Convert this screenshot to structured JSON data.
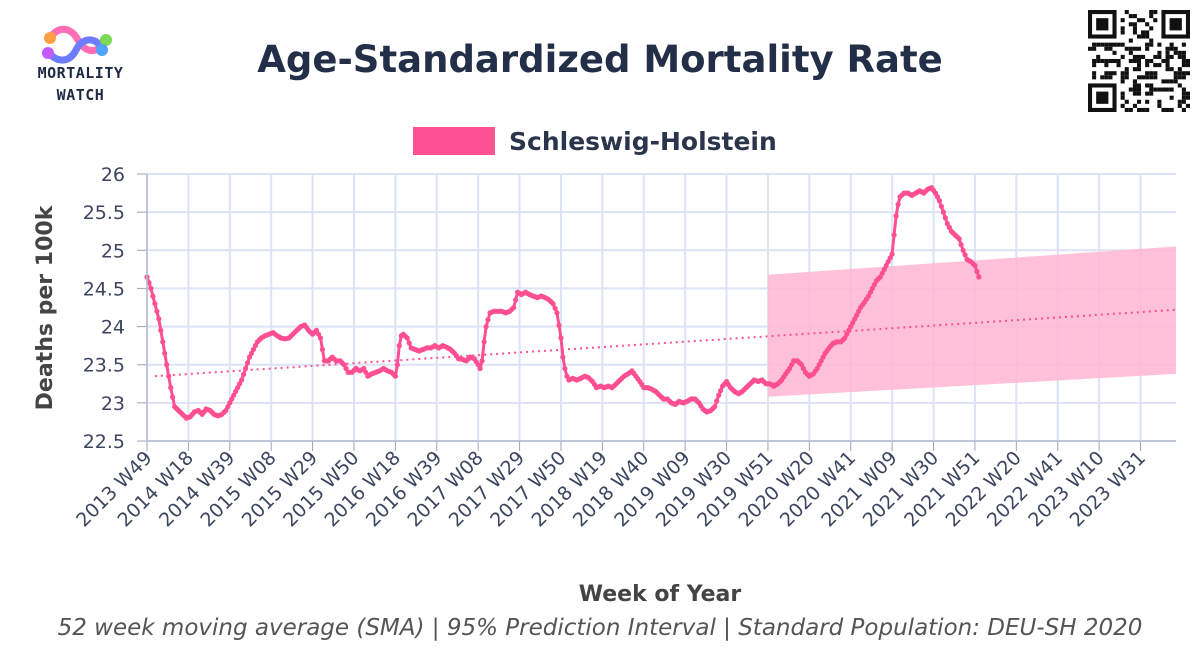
{
  "logo": {
    "line1": "MORTALITY",
    "line2": "WATCH"
  },
  "colors": {
    "series": "#ff4f93",
    "pi_fill": "#ffb6d2",
    "grid": "#dde3f5",
    "title": "#232f48"
  },
  "chart_data": {
    "type": "line",
    "title": "Age-Standardized Mortality Rate",
    "xlabel": "Week of Year",
    "ylabel": "Deaths per 100k",
    "ylim": [
      22.5,
      26
    ],
    "yticks": [
      22.5,
      23,
      23.5,
      24,
      24.5,
      25,
      25.5,
      26
    ],
    "ytick_labels": [
      "22.5",
      "23",
      "23.5",
      "24",
      "24.5",
      "25",
      "25.5",
      "26"
    ],
    "x_range_weeks": [
      0,
      522
    ],
    "xticks": [
      {
        "label": "2013 W49",
        "week": 0
      },
      {
        "label": "2014 W18",
        "week": 21
      },
      {
        "label": "2014 W39",
        "week": 42
      },
      {
        "label": "2015 W08",
        "week": 63
      },
      {
        "label": "2015 W29",
        "week": 84
      },
      {
        "label": "2015 W50",
        "week": 105
      },
      {
        "label": "2016 W18",
        "week": 126
      },
      {
        "label": "2016 W39",
        "week": 147
      },
      {
        "label": "2017 W08",
        "week": 168
      },
      {
        "label": "2017 W29",
        "week": 189
      },
      {
        "label": "2017 W50",
        "week": 210
      },
      {
        "label": "2018 W19",
        "week": 231
      },
      {
        "label": "2018 W40",
        "week": 252
      },
      {
        "label": "2019 W09",
        "week": 273
      },
      {
        "label": "2019 W30",
        "week": 294
      },
      {
        "label": "2019 W51",
        "week": 315
      },
      {
        "label": "2020 W20",
        "week": 336
      },
      {
        "label": "2020 W41",
        "week": 357
      },
      {
        "label": "2021 W09",
        "week": 378
      },
      {
        "label": "2021 W30",
        "week": 399
      },
      {
        "label": "2021 W51",
        "week": 420
      },
      {
        "label": "2022 W20",
        "week": 441
      },
      {
        "label": "2022 W41",
        "week": 462
      },
      {
        "label": "2023 W10",
        "week": 483
      },
      {
        "label": "2023 W31",
        "week": 504
      }
    ],
    "series": [
      {
        "name": "Schleswig-Holstein",
        "points": [
          [
            0,
            24.65
          ],
          [
            2,
            24.5
          ],
          [
            4,
            24.3
          ],
          [
            6,
            24.1
          ],
          [
            8,
            23.8
          ],
          [
            10,
            23.5
          ],
          [
            12,
            23.2
          ],
          [
            14,
            22.95
          ],
          [
            16,
            22.9
          ],
          [
            18,
            22.85
          ],
          [
            20,
            22.8
          ],
          [
            22,
            22.82
          ],
          [
            24,
            22.88
          ],
          [
            26,
            22.9
          ],
          [
            28,
            22.85
          ],
          [
            30,
            22.92
          ],
          [
            32,
            22.9
          ],
          [
            34,
            22.85
          ],
          [
            36,
            22.83
          ],
          [
            38,
            22.85
          ],
          [
            40,
            22.9
          ],
          [
            42,
            23.0
          ],
          [
            44,
            23.1
          ],
          [
            46,
            23.2
          ],
          [
            48,
            23.3
          ],
          [
            50,
            23.45
          ],
          [
            52,
            23.6
          ],
          [
            54,
            23.7
          ],
          [
            56,
            23.8
          ],
          [
            58,
            23.85
          ],
          [
            60,
            23.88
          ],
          [
            62,
            23.9
          ],
          [
            64,
            23.92
          ],
          [
            66,
            23.88
          ],
          [
            68,
            23.85
          ],
          [
            70,
            23.84
          ],
          [
            72,
            23.85
          ],
          [
            74,
            23.9
          ],
          [
            76,
            23.95
          ],
          [
            78,
            24.0
          ],
          [
            80,
            24.02
          ],
          [
            82,
            23.95
          ],
          [
            84,
            23.9
          ],
          [
            86,
            23.95
          ],
          [
            88,
            23.85
          ],
          [
            90,
            23.55
          ],
          [
            92,
            23.55
          ],
          [
            94,
            23.6
          ],
          [
            96,
            23.55
          ],
          [
            98,
            23.55
          ],
          [
            100,
            23.5
          ],
          [
            102,
            23.4
          ],
          [
            104,
            23.4
          ],
          [
            106,
            23.45
          ],
          [
            108,
            23.42
          ],
          [
            110,
            23.45
          ],
          [
            112,
            23.35
          ],
          [
            114,
            23.38
          ],
          [
            116,
            23.4
          ],
          [
            118,
            23.42
          ],
          [
            120,
            23.45
          ],
          [
            122,
            23.42
          ],
          [
            124,
            23.4
          ],
          [
            126,
            23.35
          ],
          [
            127,
            23.5
          ],
          [
            128,
            23.75
          ],
          [
            129,
            23.88
          ],
          [
            130,
            23.9
          ],
          [
            132,
            23.85
          ],
          [
            134,
            23.72
          ],
          [
            136,
            23.7
          ],
          [
            138,
            23.68
          ],
          [
            140,
            23.7
          ],
          [
            142,
            23.72
          ],
          [
            144,
            23.72
          ],
          [
            146,
            23.75
          ],
          [
            148,
            23.72
          ],
          [
            150,
            23.75
          ],
          [
            152,
            23.73
          ],
          [
            154,
            23.7
          ],
          [
            156,
            23.65
          ],
          [
            158,
            23.58
          ],
          [
            160,
            23.57
          ],
          [
            162,
            23.55
          ],
          [
            164,
            23.6
          ],
          [
            166,
            23.58
          ],
          [
            168,
            23.5
          ],
          [
            169,
            23.45
          ],
          [
            170,
            23.55
          ],
          [
            171,
            23.8
          ],
          [
            172,
            24.0
          ],
          [
            174,
            24.18
          ],
          [
            176,
            24.2
          ],
          [
            178,
            24.2
          ],
          [
            180,
            24.2
          ],
          [
            182,
            24.18
          ],
          [
            184,
            24.2
          ],
          [
            186,
            24.25
          ],
          [
            188,
            24.45
          ],
          [
            190,
            24.42
          ],
          [
            192,
            24.45
          ],
          [
            194,
            24.42
          ],
          [
            196,
            24.4
          ],
          [
            198,
            24.38
          ],
          [
            200,
            24.4
          ],
          [
            202,
            24.38
          ],
          [
            204,
            24.35
          ],
          [
            206,
            24.3
          ],
          [
            208,
            24.18
          ],
          [
            210,
            23.85
          ],
          [
            211,
            23.6
          ],
          [
            212,
            23.45
          ],
          [
            213,
            23.35
          ],
          [
            214,
            23.3
          ],
          [
            216,
            23.32
          ],
          [
            218,
            23.3
          ],
          [
            220,
            23.32
          ],
          [
            222,
            23.35
          ],
          [
            224,
            23.33
          ],
          [
            226,
            23.28
          ],
          [
            228,
            23.2
          ],
          [
            230,
            23.22
          ],
          [
            232,
            23.2
          ],
          [
            234,
            23.22
          ],
          [
            236,
            23.2
          ],
          [
            238,
            23.25
          ],
          [
            240,
            23.3
          ],
          [
            242,
            23.35
          ],
          [
            244,
            23.38
          ],
          [
            246,
            23.42
          ],
          [
            248,
            23.35
          ],
          [
            250,
            23.28
          ],
          [
            252,
            23.2
          ],
          [
            254,
            23.2
          ],
          [
            256,
            23.18
          ],
          [
            258,
            23.15
          ],
          [
            260,
            23.1
          ],
          [
            262,
            23.05
          ],
          [
            264,
            23.05
          ],
          [
            266,
            23.0
          ],
          [
            268,
            22.98
          ],
          [
            270,
            23.02
          ],
          [
            272,
            23.0
          ],
          [
            274,
            23.02
          ],
          [
            276,
            23.05
          ],
          [
            278,
            23.05
          ],
          [
            280,
            23.0
          ],
          [
            282,
            22.92
          ],
          [
            284,
            22.88
          ],
          [
            286,
            22.9
          ],
          [
            288,
            22.95
          ],
          [
            290,
            23.1
          ],
          [
            292,
            23.22
          ],
          [
            294,
            23.28
          ],
          [
            296,
            23.2
          ],
          [
            298,
            23.15
          ],
          [
            300,
            23.12
          ],
          [
            302,
            23.15
          ],
          [
            304,
            23.2
          ],
          [
            306,
            23.25
          ],
          [
            308,
            23.3
          ],
          [
            310,
            23.28
          ],
          [
            312,
            23.3
          ],
          [
            314,
            23.25
          ],
          [
            316,
            23.25
          ],
          [
            318,
            23.22
          ],
          [
            320,
            23.25
          ],
          [
            322,
            23.3
          ],
          [
            324,
            23.38
          ],
          [
            326,
            23.45
          ],
          [
            328,
            23.55
          ],
          [
            330,
            23.55
          ],
          [
            332,
            23.5
          ],
          [
            334,
            23.4
          ],
          [
            336,
            23.35
          ],
          [
            338,
            23.38
          ],
          [
            340,
            23.45
          ],
          [
            342,
            23.55
          ],
          [
            344,
            23.65
          ],
          [
            346,
            23.72
          ],
          [
            348,
            23.78
          ],
          [
            350,
            23.8
          ],
          [
            352,
            23.8
          ],
          [
            354,
            23.85
          ],
          [
            356,
            23.95
          ],
          [
            358,
            24.05
          ],
          [
            360,
            24.15
          ],
          [
            362,
            24.25
          ],
          [
            364,
            24.32
          ],
          [
            366,
            24.4
          ],
          [
            368,
            24.5
          ],
          [
            370,
            24.6
          ],
          [
            372,
            24.65
          ],
          [
            374,
            24.75
          ],
          [
            376,
            24.85
          ],
          [
            378,
            24.95
          ],
          [
            379,
            25.2
          ],
          [
            380,
            25.45
          ],
          [
            381,
            25.6
          ],
          [
            382,
            25.7
          ],
          [
            384,
            25.75
          ],
          [
            386,
            25.75
          ],
          [
            388,
            25.72
          ],
          [
            390,
            25.75
          ],
          [
            392,
            25.78
          ],
          [
            394,
            25.75
          ],
          [
            396,
            25.8
          ],
          [
            398,
            25.82
          ],
          [
            400,
            25.75
          ],
          [
            402,
            25.65
          ],
          [
            404,
            25.5
          ],
          [
            406,
            25.35
          ],
          [
            408,
            25.25
          ],
          [
            410,
            25.2
          ],
          [
            412,
            25.15
          ],
          [
            414,
            25.0
          ],
          [
            416,
            24.88
          ],
          [
            418,
            24.85
          ],
          [
            420,
            24.8
          ],
          [
            422,
            24.65
          ]
        ]
      }
    ],
    "trend": {
      "name": "",
      "points": [
        [
          4,
          23.35
        ],
        [
          522,
          24.22
        ]
      ]
    },
    "prediction_interval": {
      "start_week": 315,
      "upper": [
        [
          315,
          24.68
        ],
        [
          522,
          25.05
        ]
      ],
      "lower": [
        [
          315,
          23.08
        ],
        [
          522,
          23.38
        ]
      ]
    },
    "legend": [
      {
        "label": "Schleswig-Holstein"
      }
    ],
    "legend_position": "top-center",
    "grid": true,
    "footnote": "52 week moving average (SMA) | 95% Prediction Interval | Standard Population: DEU-SH 2020"
  }
}
